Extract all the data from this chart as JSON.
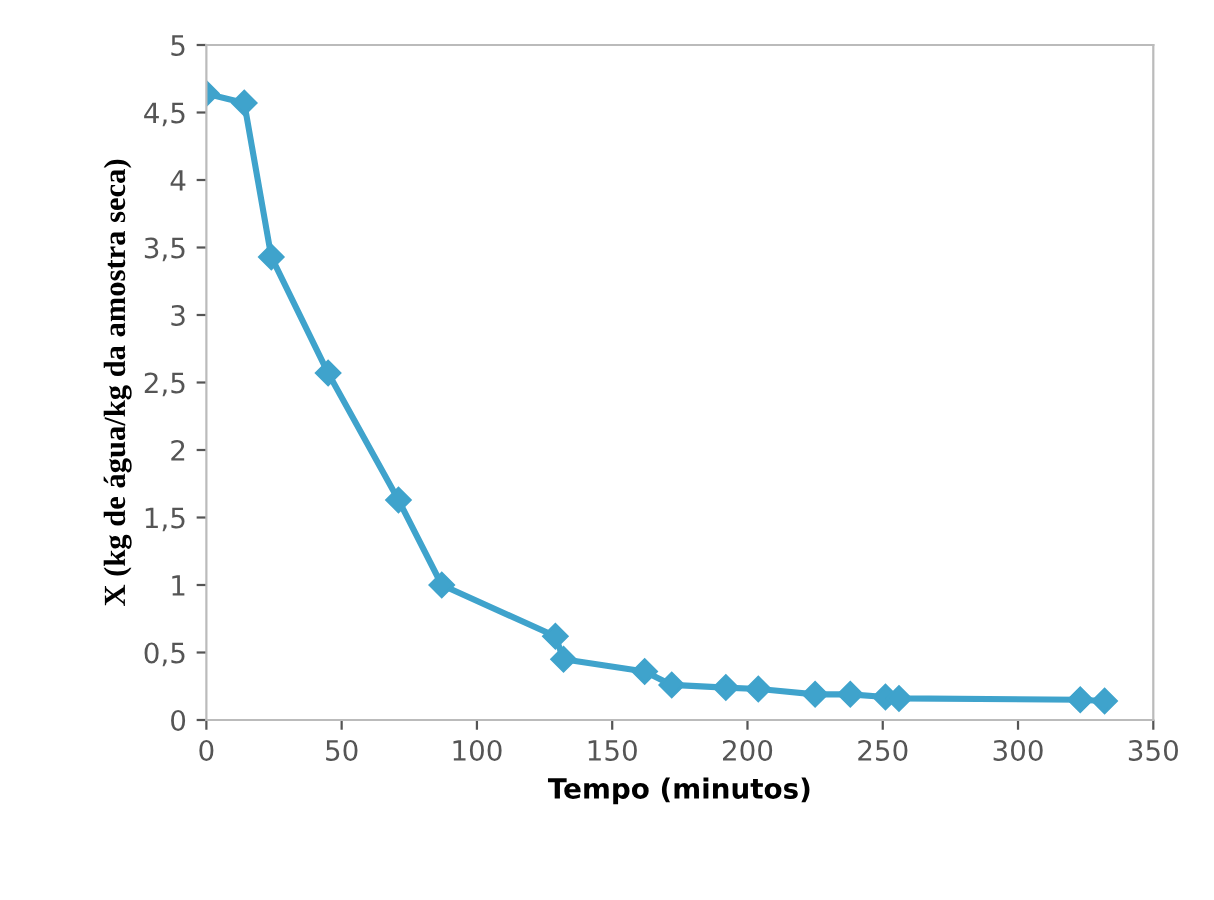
{
  "chart_data": {
    "type": "line",
    "xlabel": "Tempo (minutos)",
    "ylabel": "X (kg de água/kg da amostra seca)",
    "x": [
      0,
      14,
      24,
      45,
      71,
      87,
      129,
      132,
      162,
      172,
      192,
      204,
      225,
      238,
      251,
      256,
      323,
      332
    ],
    "series": [
      {
        "color": "#3fa3cc",
        "values": [
          4.64,
          4.57,
          3.43,
          2.57,
          1.63,
          1.0,
          0.62,
          0.45,
          0.36,
          0.26,
          0.24,
          0.23,
          0.19,
          0.19,
          0.17,
          0.16,
          0.15,
          0.14
        ]
      }
    ],
    "xlim": [
      0,
      350
    ],
    "xticks": [
      0,
      50,
      100,
      150,
      200,
      250,
      300,
      350
    ],
    "ylim": [
      0,
      5
    ],
    "yticks": [
      0,
      {
        "value": 0.5,
        "label": "0,5"
      },
      1,
      {
        "value": 1.5,
        "label": "1,5"
      },
      2,
      {
        "value": 2.5,
        "label": "2,5"
      },
      3,
      {
        "value": 3.5,
        "label": "3,5"
      },
      4,
      {
        "value": 4.5,
        "label": "4,5"
      },
      5
    ],
    "marker": "diamond",
    "line_style": "solid",
    "grid": false,
    "legend": false
  }
}
